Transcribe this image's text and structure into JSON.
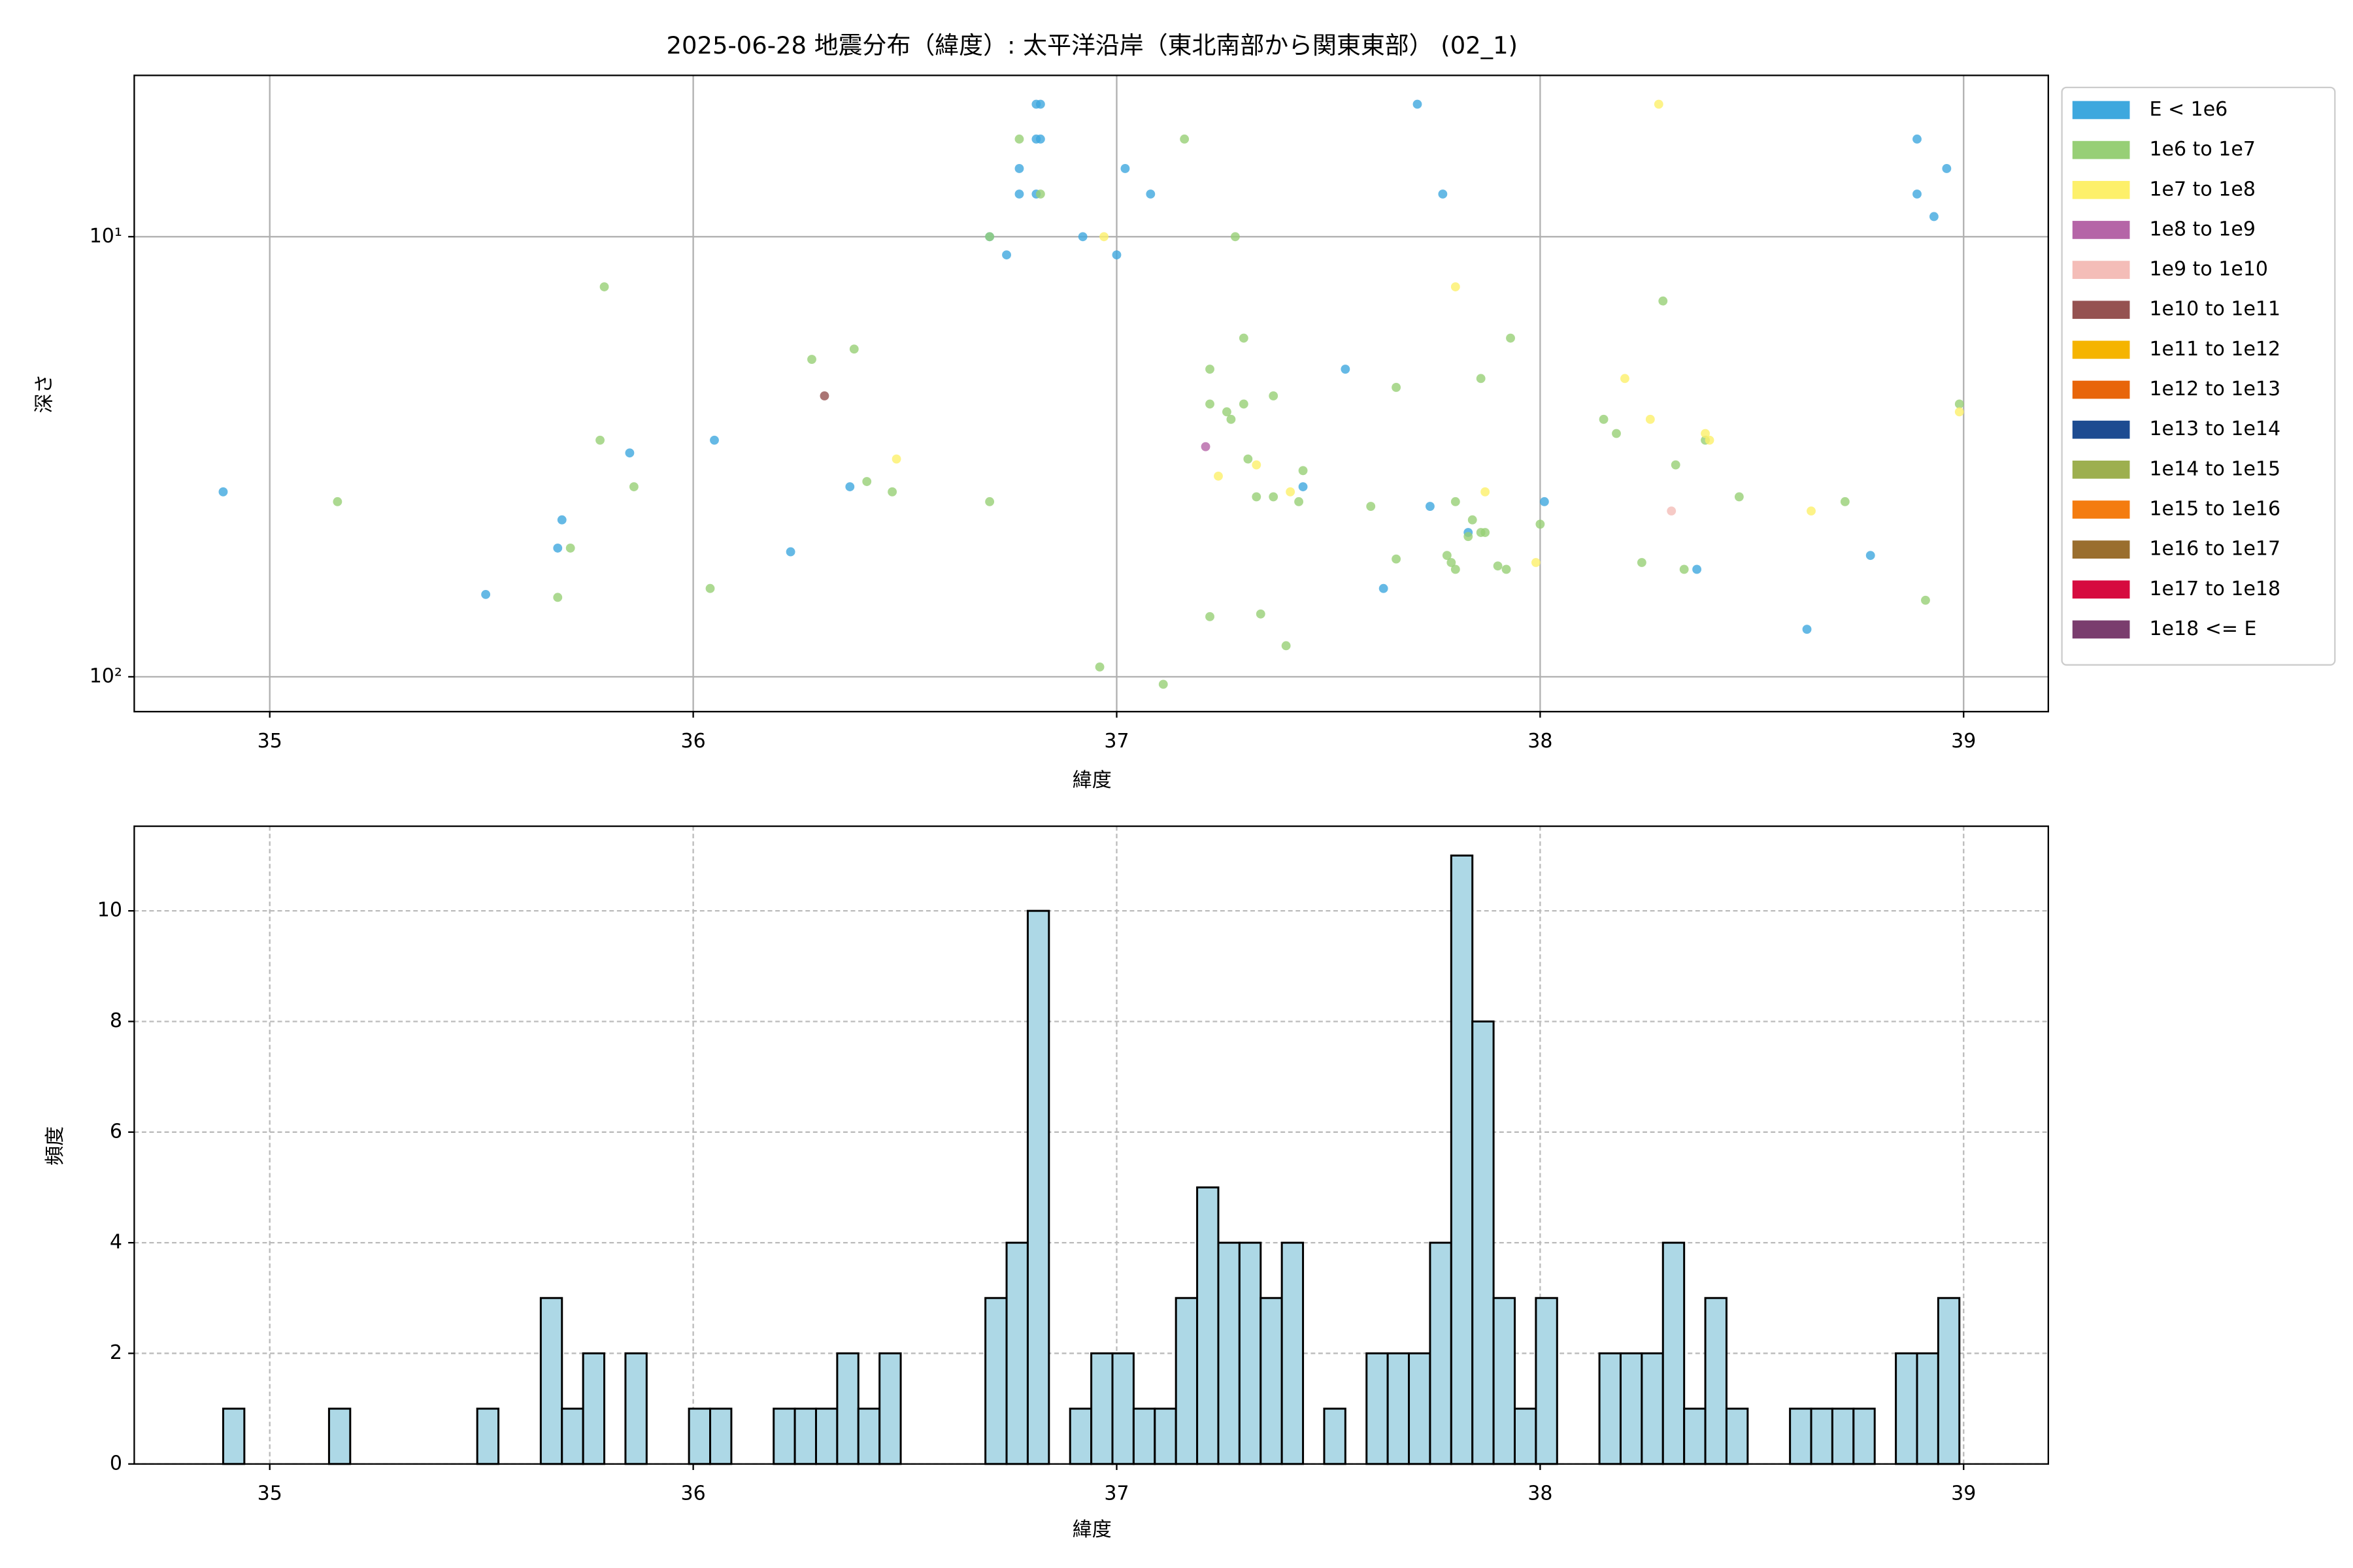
{
  "chart_data": [
    {
      "type": "scatter",
      "title": "2025-06-28 地震分布（緯度）: 太平洋沿岸（東北南部から関東東部） (02_1)",
      "x_label": "緯度",
      "y_label": "深さ",
      "xlim": [
        34.68,
        39.2
      ],
      "xticks": [
        35,
        36,
        37,
        38,
        39
      ],
      "ylim": [
        4.3,
        120
      ],
      "y_scale": "log",
      "y_inverted": true,
      "yticks": [
        {
          "value": 10,
          "label": "10¹"
        },
        {
          "value": 100,
          "label": "10²"
        }
      ],
      "grid": true,
      "legend_position": "right",
      "series": [
        {
          "name": "E < 1e6",
          "color": "#3ea8de",
          "x": [
            34.89,
            35.51,
            35.69,
            35.68,
            35.85,
            36.05,
            36.23,
            36.37,
            36.81,
            36.82,
            36.81,
            36.82,
            36.77,
            36.77,
            36.81,
            36.7,
            36.74,
            36.92,
            37.0,
            37.02,
            37.08,
            37.71,
            37.77,
            37.54,
            37.44,
            37.74,
            37.63,
            37.83,
            38.01,
            38.37,
            38.63,
            38.78,
            38.89,
            38.96,
            38.89,
            38.93
          ],
          "values": [
            38,
            65,
            44,
            51,
            31,
            29,
            52,
            37,
            5,
            5,
            6,
            6,
            7,
            8,
            8,
            10,
            11,
            10,
            11,
            7,
            8,
            5,
            8,
            20,
            37,
            41,
            63,
            47,
            40,
            57,
            78,
            53,
            6,
            7,
            8,
            9
          ]
        },
        {
          "name": "1e6 to 1e7",
          "color": "#97cf76",
          "x": [
            35.16,
            35.79,
            35.78,
            35.68,
            35.71,
            35.86,
            36.04,
            36.28,
            36.38,
            36.41,
            36.47,
            36.7,
            36.7,
            36.77,
            36.82,
            36.96,
            37.11,
            37.16,
            37.22,
            37.22,
            37.22,
            37.26,
            37.27,
            37.28,
            37.3,
            37.3,
            37.31,
            37.33,
            37.37,
            37.37,
            37.34,
            37.4,
            37.43,
            37.44,
            37.6,
            37.66,
            37.66,
            37.78,
            37.79,
            37.8,
            37.8,
            37.84,
            37.83,
            37.86,
            37.87,
            37.86,
            37.9,
            37.92,
            37.93,
            38.0,
            38.15,
            38.18,
            38.24,
            38.29,
            38.32,
            38.34,
            38.39,
            38.47,
            38.72,
            38.91,
            38.99
          ],
          "values": [
            40,
            13,
            29,
            66,
            51,
            37,
            63,
            19,
            18,
            36,
            38,
            40,
            10,
            6,
            8,
            95,
            104,
            6,
            24,
            20,
            73,
            25,
            26,
            10,
            17,
            24,
            32,
            39,
            39,
            23,
            72,
            85,
            40,
            34,
            41,
            54,
            22,
            53,
            55,
            57,
            40,
            44,
            48,
            47,
            47,
            21,
            56,
            57,
            17,
            45,
            26,
            28,
            55,
            14,
            33,
            57,
            29,
            39,
            40,
            67,
            24
          ]
        },
        {
          "name": "1e7 to 1e8",
          "color": "#fdf06a",
          "x": [
            36.48,
            36.97,
            37.24,
            37.33,
            37.41,
            37.8,
            37.87,
            37.99,
            38.2,
            38.26,
            38.28,
            38.39,
            38.4,
            38.64,
            38.99
          ],
          "values": [
            32,
            10,
            35,
            33,
            38,
            13,
            38,
            55,
            21,
            26,
            5,
            28,
            29,
            42,
            25
          ]
        },
        {
          "name": "1e8 to 1e9",
          "color": "#b565a7",
          "x": [
            37.21
          ],
          "values": [
            30
          ]
        },
        {
          "name": "1e9 to 1e10",
          "color": "#f4bdb8",
          "x": [
            38.31
          ],
          "values": [
            42
          ]
        },
        {
          "name": "1e10 to 1e11",
          "color": "#955251",
          "x": [
            36.31
          ],
          "values": [
            23
          ]
        },
        {
          "name": "1e11 to 1e12",
          "color": "#f5b400",
          "x": [],
          "values": []
        },
        {
          "name": "1e12 to 1e13",
          "color": "#e8650a",
          "x": [],
          "values": []
        },
        {
          "name": "1e13 to 1e14",
          "color": "#1d4b91",
          "x": [],
          "values": []
        },
        {
          "name": "1e14 to 1e15",
          "color": "#9daf4f",
          "x": [],
          "values": []
        },
        {
          "name": "1e15 to 1e16",
          "color": "#f47c10",
          "x": [],
          "values": []
        },
        {
          "name": "1e16 to 1e17",
          "color": "#9a6e2e",
          "x": [],
          "values": []
        },
        {
          "name": "1e17 to 1e18",
          "color": "#d60b3f",
          "x": [],
          "values": []
        },
        {
          "name": "1e18 <= E",
          "color": "#7a3d6e",
          "x": [],
          "values": []
        }
      ]
    },
    {
      "type": "histogram",
      "x_label": "緯度",
      "y_label": "頻度",
      "xlim": [
        34.68,
        39.2
      ],
      "xticks": [
        35,
        36,
        37,
        38,
        39
      ],
      "ylim": [
        0,
        11.53
      ],
      "yticks": [
        0,
        2,
        4,
        6,
        8,
        10
      ],
      "grid": true,
      "color": "#add8e6",
      "edgecolor": "#000000",
      "bins": [
        34.89,
        34.94,
        34.99,
        35.04,
        35.09,
        35.14,
        35.19,
        35.24,
        35.29,
        35.34,
        35.39,
        35.44,
        35.49,
        35.54,
        35.59,
        35.64,
        35.69,
        35.74,
        35.79,
        35.84,
        35.89,
        35.94,
        35.99,
        36.04,
        36.09,
        36.14,
        36.19,
        36.24,
        36.29,
        36.34,
        36.39,
        36.44,
        36.49,
        36.54,
        36.59,
        36.64,
        36.69,
        36.74,
        36.79,
        36.84,
        36.89,
        36.94,
        36.99,
        37.04,
        37.09,
        37.14,
        37.19,
        37.24,
        37.29,
        37.34,
        37.39,
        37.44,
        37.49,
        37.54,
        37.59,
        37.64,
        37.69,
        37.74,
        37.79,
        37.84,
        37.89,
        37.94,
        37.99,
        38.04,
        38.09,
        38.14,
        38.19,
        38.24,
        38.29,
        38.34,
        38.39,
        38.44,
        38.49,
        38.54,
        38.59,
        38.64,
        38.69,
        38.74,
        38.79,
        38.84,
        38.89,
        38.94,
        38.99
      ],
      "values": [
        1,
        0,
        0,
        0,
        0,
        1,
        0,
        0,
        0,
        0,
        0,
        0,
        1,
        0,
        0,
        3,
        1,
        2,
        0,
        2,
        0,
        0,
        1,
        1,
        0,
        0,
        1,
        1,
        1,
        2,
        1,
        2,
        0,
        0,
        0,
        0,
        3,
        4,
        10,
        0,
        1,
        2,
        2,
        1,
        1,
        3,
        5,
        4,
        4,
        3,
        4,
        0,
        1,
        0,
        2,
        2,
        2,
        4,
        11,
        8,
        3,
        1,
        3,
        0,
        0,
        2,
        2,
        2,
        4,
        1,
        3,
        1,
        0,
        0,
        1,
        1,
        1,
        1,
        0,
        2,
        2,
        3
      ]
    }
  ]
}
